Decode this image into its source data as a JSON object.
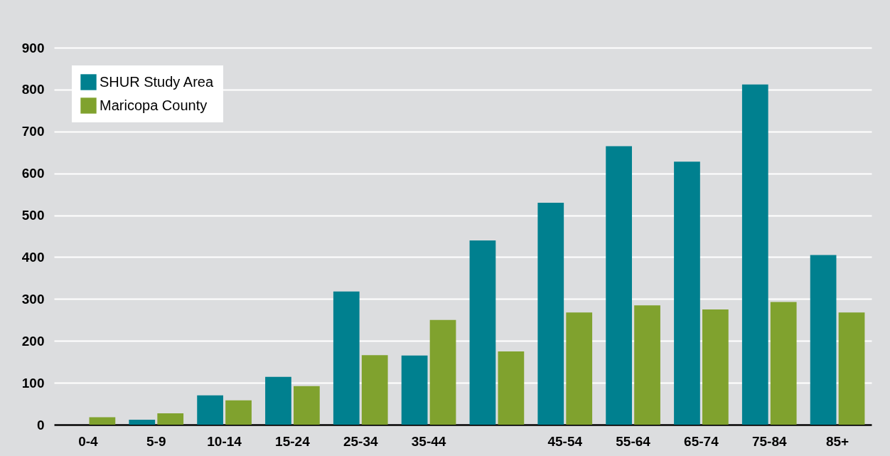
{
  "chart_data": {
    "type": "bar",
    "categories": [
      "0-4",
      "5-9",
      "10-14",
      "15-24",
      "25-34",
      "35-44",
      null,
      "45-54",
      "55-64",
      "65-74",
      "75-84",
      "85+"
    ],
    "series": [
      {
        "name": "SHUR Study Area",
        "color": "#00808f",
        "values": [
          null,
          12,
          70,
          114,
          318,
          165,
          440,
          530,
          665,
          628,
          812,
          405
        ]
      },
      {
        "name": "Maricopa County",
        "color": "#80a22e",
        "values": [
          18,
          27,
          58,
          92,
          166,
          250,
          175,
          268,
          285,
          275,
          293,
          268
        ]
      }
    ],
    "ylim": [
      0,
      900
    ],
    "yticks": [
      0,
      100,
      200,
      300,
      400,
      500,
      600,
      700,
      800,
      900
    ],
    "grid": "y",
    "legend": "top left"
  }
}
